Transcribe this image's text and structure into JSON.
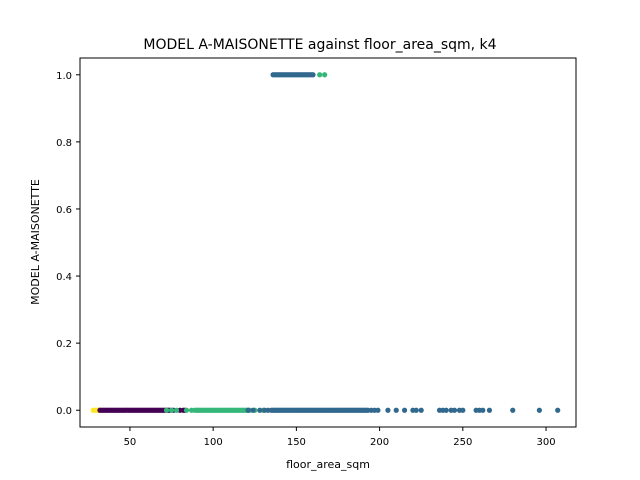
{
  "chart_data": {
    "type": "scatter",
    "title": "MODEL A-MAISONETTE against floor_area_sqm, k4",
    "xlabel": "floor_area_sqm",
    "ylabel": "MODEL A-MAISONETTE",
    "xlim": [
      20,
      318
    ],
    "ylim": [
      -0.05,
      1.05
    ],
    "xticks": [
      50,
      100,
      150,
      200,
      250,
      300
    ],
    "yticks": [
      0.0,
      0.2,
      0.4,
      0.6,
      0.8,
      1.0
    ],
    "xtick_labels": [
      "50",
      "100",
      "150",
      "200",
      "250",
      "300"
    ],
    "ytick_labels": [
      "0.0",
      "0.2",
      "0.4",
      "0.6",
      "0.8",
      "1.0"
    ],
    "grid": false,
    "legend": "none",
    "colors": {
      "cluster_0": "#440154",
      "cluster_1": "#31688e",
      "cluster_2": "#35b779",
      "cluster_3": "#fde725"
    },
    "series": [
      {
        "cluster": "cluster_3",
        "x": [
          28,
          29,
          30,
          31,
          31,
          32
        ],
        "y": [
          0,
          0,
          0,
          0,
          0,
          0
        ]
      },
      {
        "cluster": "cluster_0",
        "x": [
          32,
          33,
          34,
          35,
          36,
          37,
          38,
          39,
          40,
          41,
          42,
          43,
          44,
          45,
          46,
          47,
          48,
          49,
          50,
          51,
          52,
          53,
          54,
          55,
          56,
          57,
          58,
          59,
          60,
          61,
          62,
          63,
          64,
          65,
          66,
          67,
          68,
          69,
          70,
          71,
          72,
          73,
          74,
          76,
          80,
          82,
          83
        ],
        "y": [
          0,
          0,
          0,
          0,
          0,
          0,
          0,
          0,
          0,
          0,
          0,
          0,
          0,
          0,
          0,
          0,
          0,
          0,
          0,
          0,
          0,
          0,
          0,
          0,
          0,
          0,
          0,
          0,
          0,
          0,
          0,
          0,
          0,
          0,
          0,
          0,
          0,
          0,
          0,
          0,
          0,
          0,
          0,
          0,
          0,
          0,
          0
        ]
      },
      {
        "cluster": "cluster_2",
        "x": [
          72,
          75,
          78,
          84,
          87,
          89,
          90,
          91,
          92,
          93,
          94,
          95,
          96,
          97,
          98,
          99,
          100,
          101,
          102,
          103,
          104,
          105,
          106,
          107,
          108,
          109,
          110,
          111,
          112,
          113,
          114,
          115,
          116,
          117,
          118,
          119,
          120,
          121,
          122,
          125,
          130,
          164,
          167
        ],
        "y": [
          0,
          0,
          0,
          0,
          0,
          0,
          0,
          0,
          0,
          0,
          0,
          0,
          0,
          0,
          0,
          0,
          0,
          0,
          0,
          0,
          0,
          0,
          0,
          0,
          0,
          0,
          0,
          0,
          0,
          0,
          0,
          0,
          0,
          0,
          0,
          0,
          0,
          0,
          0,
          0,
          0,
          1,
          1
        ]
      },
      {
        "cluster": "cluster_1",
        "x": [
          121,
          124,
          128,
          131,
          133,
          135,
          136,
          137,
          138,
          139,
          140,
          141,
          142,
          143,
          144,
          145,
          146,
          147,
          148,
          149,
          150,
          151,
          152,
          153,
          154,
          155,
          156,
          157,
          158,
          159,
          160,
          161,
          162,
          163,
          164,
          165,
          166,
          167,
          168,
          169,
          170,
          171,
          172,
          173,
          174,
          175,
          176,
          177,
          178,
          179,
          180,
          181,
          182,
          183,
          184,
          185,
          186,
          187,
          188,
          189,
          190,
          191,
          192,
          193,
          195,
          197,
          199,
          205,
          210,
          215,
          220,
          222,
          225,
          236,
          238,
          240,
          243,
          245,
          248,
          250,
          258,
          260,
          262,
          266,
          280,
          296,
          307,
          136,
          137,
          138,
          139,
          140,
          141,
          142,
          143,
          144,
          145,
          146,
          147,
          148,
          149,
          150,
          151,
          152,
          153,
          154,
          155,
          156,
          157,
          158,
          159,
          160
        ],
        "y": [
          0,
          0,
          0,
          0,
          0,
          0,
          0,
          0,
          0,
          0,
          0,
          0,
          0,
          0,
          0,
          0,
          0,
          0,
          0,
          0,
          0,
          0,
          0,
          0,
          0,
          0,
          0,
          0,
          0,
          0,
          0,
          0,
          0,
          0,
          0,
          0,
          0,
          0,
          0,
          0,
          0,
          0,
          0,
          0,
          0,
          0,
          0,
          0,
          0,
          0,
          0,
          0,
          0,
          0,
          0,
          0,
          0,
          0,
          0,
          0,
          0,
          0,
          0,
          0,
          0,
          0,
          0,
          0,
          0,
          0,
          0,
          0,
          0,
          0,
          0,
          0,
          0,
          0,
          0,
          0,
          0,
          0,
          0,
          0,
          0,
          0,
          0,
          1,
          1,
          1,
          1,
          1,
          1,
          1,
          1,
          1,
          1,
          1,
          1,
          1,
          1,
          1,
          1,
          1,
          1,
          1,
          1,
          1,
          1,
          1,
          1,
          1
        ]
      }
    ]
  }
}
